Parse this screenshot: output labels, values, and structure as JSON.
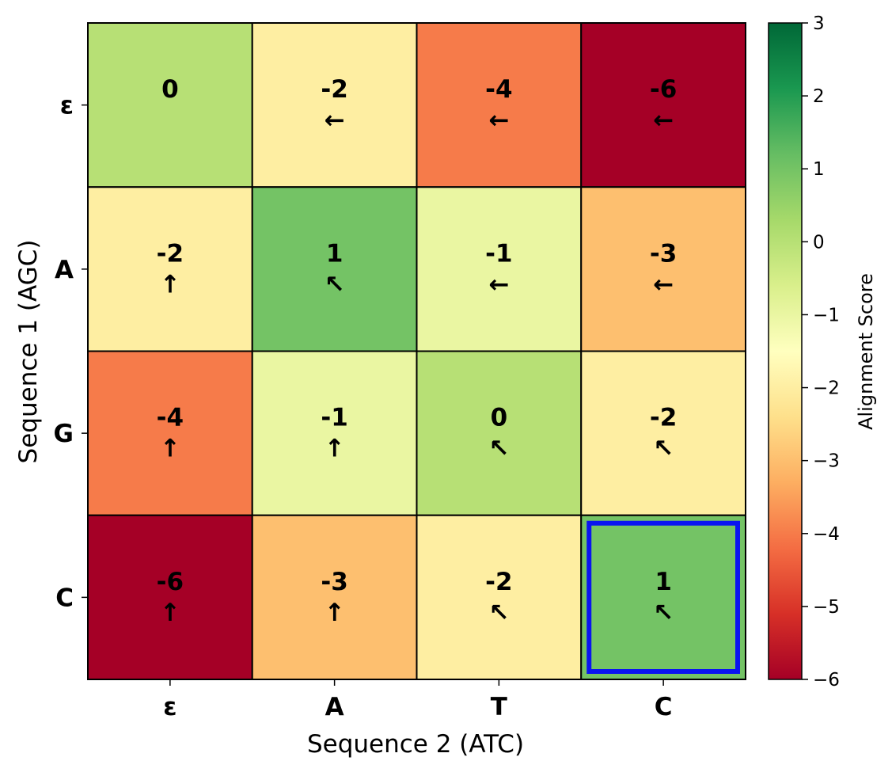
{
  "chart_data": {
    "type": "heatmap",
    "title": "",
    "xlabel": "Sequence 2 (ATC)",
    "ylabel": "Sequence 1 (AGC)",
    "x_categories": [
      "ε",
      "A",
      "T",
      "C"
    ],
    "y_categories": [
      "ε",
      "A",
      "G",
      "C"
    ],
    "values": [
      [
        0,
        -2,
        -4,
        -6
      ],
      [
        -2,
        1,
        -1,
        -3
      ],
      [
        -4,
        -1,
        0,
        -2
      ],
      [
        -6,
        -3,
        -2,
        1
      ]
    ],
    "arrows": [
      [
        "",
        "←",
        "←",
        "←"
      ],
      [
        "↑",
        "↖",
        "←",
        "←"
      ],
      [
        "↑",
        "↑",
        "↖",
        "↖"
      ],
      [
        "↑",
        "↑",
        "↖",
        "↖"
      ]
    ],
    "highlight_cell": {
      "row": 3,
      "col": 3,
      "color": "#0a14f0"
    },
    "colorbar": {
      "label": "Alignment Score",
      "min": -6,
      "max": 3,
      "ticks": [
        3,
        2,
        1,
        0,
        -1,
        -2,
        -3,
        -4,
        -5,
        -6
      ],
      "tick_labels": [
        "3",
        "2",
        "1",
        "0",
        "−1",
        "−2",
        "−3",
        "−4",
        "−5",
        "−6"
      ],
      "colormap": "RdYlGn"
    },
    "grid": false,
    "legend": "none"
  }
}
